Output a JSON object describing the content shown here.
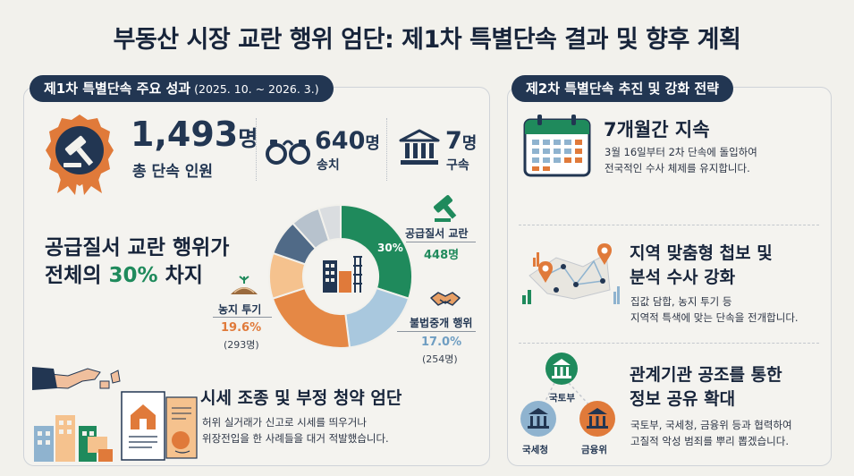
{
  "title": "부동산 시장 교란 행위 엄단: 제1차 특별단속 결과 및 향후 계획",
  "left": {
    "tag": "제1차 특별단속 주요 성과",
    "tag_period": "(2025. 10. ~ 2026. 3.)",
    "stats": [
      {
        "value": "1,493",
        "unit": "명",
        "label": "총 단속 인원",
        "icon": "gavel-badge-icon"
      },
      {
        "value": "640",
        "unit": "명",
        "label": "송치",
        "icon": "handcuffs-icon"
      },
      {
        "value": "7",
        "unit": "명",
        "label": "구속",
        "icon": "courthouse-icon"
      }
    ],
    "highlight_line1": "공급질서 교란 행위가",
    "highlight_line2_pre": "전체의 ",
    "highlight_pct": "30%",
    "highlight_line2_post": " 차지",
    "donut_center_pct": "30%",
    "segments": {
      "supply": {
        "label": "공급질서 교란",
        "count": "448명",
        "icon": "gavel-icon"
      },
      "broker": {
        "label": "불법중개 행위",
        "pct": "17.0%",
        "count": "(254명)",
        "icon": "handshake-icon"
      },
      "farmland": {
        "label": "농지 투기",
        "pct": "19.6%",
        "count": "(293명)",
        "icon": "farmland-icon"
      }
    },
    "bottom_title": "시세 조종 및 부정 청약 엄단",
    "bottom_desc1": "허위 실거래가 신고로 시세를 띄우거나",
    "bottom_desc2": "위장전입을 한 사례들을 대거 적발했습니다."
  },
  "right": {
    "tag": "제2차 특별단속 추진 및 강화 전략",
    "items": [
      {
        "title": "7개월간 지속",
        "desc1": "3월 16일부터 2차 단속에 돌입하여",
        "desc2": "전국적인 수사 체제를 유지합니다.",
        "icon": "calendar-icon"
      },
      {
        "title1": "지역 맞춤형 첩보 및",
        "title2": "분석 수사 강화",
        "desc1": "집값 담합, 농지 투기 등",
        "desc2": "지역적 특색에 맞는 단속을 전개합니다.",
        "icon": "map-pin-network-icon"
      },
      {
        "title1": "관계기관 공조를 통한",
        "title2": "정보 공유 확대",
        "desc1": "국토부, 국세청, 금융위 등과 협력하여",
        "desc2": "고질적 악성 범죄를 뿌리 뽑겠습니다.",
        "icon": "agencies-icon"
      }
    ],
    "agencies": [
      "국토부",
      "국세청",
      "금융위"
    ]
  },
  "colors": {
    "navy": "#223652",
    "green": "#1f8a5c",
    "orange": "#e07a3a",
    "blue": "#8fb3cf"
  }
}
